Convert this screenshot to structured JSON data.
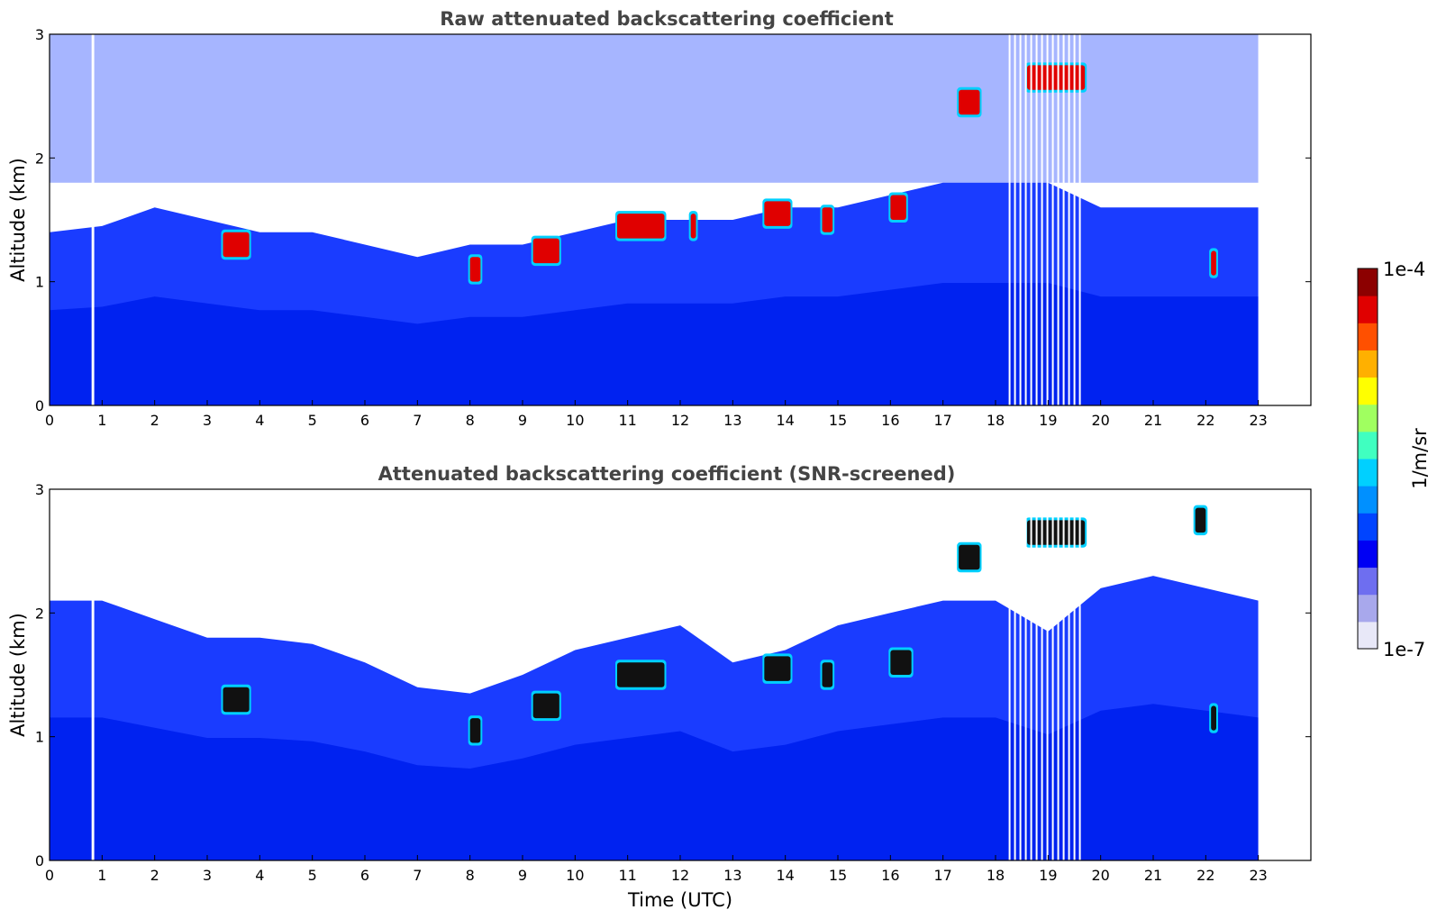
{
  "chart_data": [
    {
      "type": "heatmap",
      "title": "Raw attenuated backscattering coefficient",
      "xlabel": "",
      "ylabel": "Altitude (km)",
      "xlim": [
        0,
        24
      ],
      "ylim": [
        0,
        3
      ],
      "x_ticks": [
        "0",
        "1",
        "2",
        "3",
        "4",
        "5",
        "6",
        "7",
        "8",
        "9",
        "10",
        "11",
        "12",
        "13",
        "14",
        "15",
        "16",
        "17",
        "18",
        "19",
        "20",
        "21",
        "22",
        "23"
      ],
      "y_ticks": [
        "0",
        "1",
        "2",
        "3"
      ],
      "data_end_hour": 23,
      "boundary_layer_top_km": [
        [
          0,
          1.4
        ],
        [
          1,
          1.45
        ],
        [
          2,
          1.6
        ],
        [
          3,
          1.5
        ],
        [
          4,
          1.4
        ],
        [
          5,
          1.4
        ],
        [
          6,
          1.3
        ],
        [
          7,
          1.2
        ],
        [
          8,
          1.3
        ],
        [
          9,
          1.3
        ],
        [
          10,
          1.4
        ],
        [
          11,
          1.5
        ],
        [
          12,
          1.5
        ],
        [
          13,
          1.5
        ],
        [
          14,
          1.6
        ],
        [
          15,
          1.6
        ],
        [
          16,
          1.7
        ],
        [
          17,
          1.8
        ],
        [
          18,
          1.8
        ],
        [
          19,
          1.8
        ],
        [
          20,
          1.6
        ],
        [
          21,
          1.6
        ],
        [
          22,
          1.6
        ],
        [
          23,
          1.6
        ]
      ],
      "cloud_features": [
        {
          "t_start": 3.3,
          "t_end": 3.8,
          "alt_km": 1.3
        },
        {
          "t_start": 8.0,
          "t_end": 8.2,
          "alt_km": 1.1
        },
        {
          "t_start": 9.2,
          "t_end": 9.7,
          "alt_km": 1.25
        },
        {
          "t_start": 10.8,
          "t_end": 11.7,
          "alt_km": 1.45
        },
        {
          "t_start": 12.2,
          "t_end": 12.3,
          "alt_km": 1.45
        },
        {
          "t_start": 13.6,
          "t_end": 14.1,
          "alt_km": 1.55
        },
        {
          "t_start": 14.7,
          "t_end": 14.9,
          "alt_km": 1.5
        },
        {
          "t_start": 16.0,
          "t_end": 16.3,
          "alt_km": 1.6
        },
        {
          "t_start": 17.3,
          "t_end": 17.7,
          "alt_km": 2.45
        },
        {
          "t_start": 18.6,
          "t_end": 19.7,
          "alt_km": 2.65
        },
        {
          "t_start": 22.1,
          "t_end": 22.2,
          "alt_km": 1.15
        }
      ],
      "missing_data_hours": [
        [
          0.8,
          0.85
        ],
        [
          18.25,
          19.65
        ]
      ]
    },
    {
      "type": "heatmap",
      "title": "Attenuated backscattering coefficient (SNR-screened)",
      "xlabel": "Time (UTC)",
      "ylabel": "Altitude (km)",
      "xlim": [
        0,
        24
      ],
      "ylim": [
        0,
        3
      ],
      "x_ticks": [
        "0",
        "1",
        "2",
        "3",
        "4",
        "5",
        "6",
        "7",
        "8",
        "9",
        "10",
        "11",
        "12",
        "13",
        "14",
        "15",
        "16",
        "17",
        "18",
        "19",
        "20",
        "21",
        "22",
        "23"
      ],
      "y_ticks": [
        "0",
        "1",
        "2",
        "3"
      ],
      "data_end_hour": 23,
      "screened_top_km": [
        [
          0,
          2.1
        ],
        [
          1,
          2.1
        ],
        [
          2,
          1.95
        ],
        [
          3,
          1.8
        ],
        [
          4,
          1.8
        ],
        [
          5,
          1.75
        ],
        [
          6,
          1.6
        ],
        [
          7,
          1.4
        ],
        [
          8,
          1.35
        ],
        [
          9,
          1.5
        ],
        [
          10,
          1.7
        ],
        [
          11,
          1.8
        ],
        [
          12,
          1.9
        ],
        [
          13,
          1.6
        ],
        [
          14,
          1.7
        ],
        [
          15,
          1.9
        ],
        [
          16,
          2.0
        ],
        [
          17,
          2.1
        ],
        [
          18,
          2.1
        ],
        [
          19,
          1.85
        ],
        [
          20,
          2.2
        ],
        [
          21,
          2.3
        ],
        [
          22,
          2.2
        ],
        [
          23,
          2.1
        ]
      ],
      "cloud_features": [
        {
          "t_start": 3.3,
          "t_end": 3.8,
          "alt_km": 1.3
        },
        {
          "t_start": 8.0,
          "t_end": 8.2,
          "alt_km": 1.05
        },
        {
          "t_start": 9.2,
          "t_end": 9.7,
          "alt_km": 1.25
        },
        {
          "t_start": 10.8,
          "t_end": 11.7,
          "alt_km": 1.5
        },
        {
          "t_start": 13.6,
          "t_end": 14.1,
          "alt_km": 1.55
        },
        {
          "t_start": 14.7,
          "t_end": 14.9,
          "alt_km": 1.5
        },
        {
          "t_start": 16.0,
          "t_end": 16.4,
          "alt_km": 1.6
        },
        {
          "t_start": 17.3,
          "t_end": 17.7,
          "alt_km": 2.45
        },
        {
          "t_start": 18.6,
          "t_end": 19.7,
          "alt_km": 2.65
        },
        {
          "t_start": 21.8,
          "t_end": 22.0,
          "alt_km": 2.75
        },
        {
          "t_start": 22.1,
          "t_end": 22.2,
          "alt_km": 1.15
        }
      ],
      "missing_data_hours": [
        [
          0.8,
          0.85
        ],
        [
          18.25,
          19.65
        ]
      ]
    }
  ],
  "colorbar": {
    "label": "1/m/sr",
    "max_label": "1e-4",
    "min_label": "1e-7",
    "colors": [
      "#e8e8f8",
      "#a8a8ec",
      "#6e6ef0",
      "#0000f4",
      "#0044ff",
      "#0090ff",
      "#00d0ff",
      "#40ffc0",
      "#a0ff60",
      "#ffff00",
      "#ffb000",
      "#ff5000",
      "#e00000",
      "#8c0000"
    ]
  }
}
